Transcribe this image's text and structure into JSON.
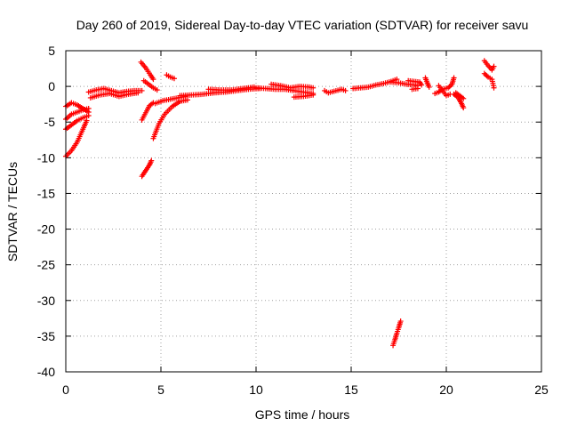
{
  "chart_data": {
    "type": "scatter",
    "title": "Day 260 of 2019, Sidereal Day-to-day VTEC variation (SDTVAR) for receiver savu",
    "xlabel": "GPS time / hours",
    "ylabel": "SDTVAR / TECUs",
    "xlim": [
      0,
      25
    ],
    "ylim": [
      -40,
      5
    ],
    "x_ticks": [
      0,
      5,
      10,
      15,
      20,
      25
    ],
    "y_ticks": [
      5,
      0,
      -5,
      -10,
      -15,
      -20,
      -25,
      -30,
      -35,
      -40
    ],
    "grid": true,
    "marker": "+",
    "marker_color": "#ff0000",
    "series": [
      {
        "name": "SDTVAR",
        "segments": [
          [
            [
              0.0,
              -2.8
            ],
            [
              0.3,
              -2.3
            ],
            [
              0.6,
              -2.6
            ],
            [
              0.9,
              -3.1
            ],
            [
              1.2,
              -3.6
            ]
          ],
          [
            [
              0.0,
              -4.6
            ],
            [
              0.3,
              -3.9
            ],
            [
              0.6,
              -3.6
            ],
            [
              0.9,
              -3.3
            ],
            [
              1.2,
              -3.1
            ]
          ],
          [
            [
              0.0,
              -6.0
            ],
            [
              0.3,
              -5.4
            ],
            [
              0.6,
              -4.8
            ],
            [
              0.9,
              -4.4
            ],
            [
              1.2,
              -4.1
            ]
          ],
          [
            [
              0.0,
              -9.8
            ],
            [
              0.3,
              -9.0
            ],
            [
              0.6,
              -7.8
            ],
            [
              0.9,
              -6.0
            ],
            [
              1.1,
              -4.8
            ]
          ],
          [
            [
              1.2,
              -0.8
            ],
            [
              1.6,
              -0.5
            ],
            [
              2.0,
              -0.3
            ],
            [
              2.4,
              -0.6
            ],
            [
              2.8,
              -0.9
            ],
            [
              3.2,
              -0.7
            ],
            [
              3.6,
              -0.6
            ],
            [
              4.0,
              -0.6
            ]
          ],
          [
            [
              1.3,
              -1.6
            ],
            [
              1.8,
              -1.2
            ],
            [
              2.3,
              -1.0
            ],
            [
              2.8,
              -1.4
            ],
            [
              3.3,
              -1.1
            ],
            [
              3.8,
              -0.9
            ]
          ],
          [
            [
              3.95,
              3.4
            ],
            [
              4.2,
              2.6
            ],
            [
              4.45,
              1.6
            ],
            [
              4.6,
              1.0
            ]
          ],
          [
            [
              4.1,
              0.8
            ],
            [
              4.35,
              0.3
            ],
            [
              4.6,
              -0.2
            ],
            [
              4.8,
              -0.5
            ]
          ],
          [
            [
              4.0,
              -4.7
            ],
            [
              4.2,
              -3.7
            ],
            [
              4.4,
              -2.7
            ],
            [
              4.6,
              -2.3
            ]
          ],
          [
            [
              4.0,
              -12.6
            ],
            [
              4.2,
              -11.8
            ],
            [
              4.4,
              -11.0
            ],
            [
              4.5,
              -10.4
            ]
          ],
          [
            [
              4.6,
              -7.3
            ],
            [
              4.9,
              -5.2
            ],
            [
              5.2,
              -3.9
            ],
            [
              5.6,
              -2.8
            ],
            [
              6.0,
              -2.1
            ],
            [
              6.4,
              -1.9
            ]
          ],
          [
            [
              4.7,
              -2.4
            ],
            [
              5.1,
              -2.0
            ],
            [
              5.5,
              -1.8
            ],
            [
              5.9,
              -1.6
            ],
            [
              6.3,
              -1.4
            ]
          ],
          [
            [
              5.3,
              1.6
            ],
            [
              5.5,
              1.3
            ],
            [
              5.7,
              1.1
            ]
          ],
          [
            [
              6.0,
              -1.3
            ],
            [
              6.6,
              -1.2
            ],
            [
              7.2,
              -1.1
            ],
            [
              7.8,
              -0.9
            ],
            [
              8.4,
              -0.8
            ],
            [
              9.0,
              -0.6
            ],
            [
              9.6,
              -0.4
            ],
            [
              10.2,
              -0.3
            ]
          ],
          [
            [
              7.5,
              -0.4
            ],
            [
              8.1,
              -0.5
            ],
            [
              8.7,
              -0.5
            ],
            [
              9.3,
              -0.3
            ],
            [
              9.9,
              -0.1
            ]
          ],
          [
            [
              10.0,
              -0.2
            ],
            [
              10.5,
              -0.3
            ],
            [
              11.0,
              -0.4
            ],
            [
              11.5,
              -0.4
            ],
            [
              12.0,
              -0.6
            ],
            [
              12.5,
              -0.8
            ],
            [
              13.0,
              -1.0
            ]
          ],
          [
            [
              10.8,
              0.3
            ],
            [
              11.3,
              0.1
            ],
            [
              11.8,
              -0.2
            ],
            [
              12.3,
              0.0
            ],
            [
              12.8,
              -0.1
            ],
            [
              13.0,
              -0.2
            ]
          ],
          [
            [
              12.0,
              -1.5
            ],
            [
              12.5,
              -1.4
            ],
            [
              13.0,
              -1.2
            ]
          ],
          [
            [
              13.6,
              -0.6
            ],
            [
              13.8,
              -0.9
            ],
            [
              14.5,
              -0.4
            ],
            [
              14.7,
              -0.6
            ]
          ],
          [
            [
              15.1,
              -0.3
            ],
            [
              15.5,
              -0.2
            ],
            [
              15.9,
              -0.1
            ],
            [
              16.3,
              0.2
            ],
            [
              16.7,
              0.4
            ],
            [
              17.1,
              0.7
            ],
            [
              17.4,
              1.0
            ]
          ],
          [
            [
              17.1,
              0.6
            ],
            [
              17.5,
              0.5
            ],
            [
              17.9,
              0.3
            ],
            [
              18.3,
              0.2
            ],
            [
              18.5,
              0.1
            ]
          ],
          [
            [
              17.2,
              -36.3
            ],
            [
              17.3,
              -35.5
            ],
            [
              17.4,
              -34.6
            ],
            [
              17.5,
              -33.8
            ],
            [
              17.6,
              -32.9
            ]
          ],
          [
            [
              18.0,
              0.8
            ],
            [
              18.3,
              0.7
            ],
            [
              18.6,
              0.6
            ],
            [
              18.7,
              0.2
            ]
          ],
          [
            [
              18.2,
              -0.4
            ],
            [
              18.5,
              -0.3
            ]
          ],
          [
            [
              18.9,
              1.2
            ],
            [
              19.0,
              0.5
            ],
            [
              19.1,
              -0.1
            ]
          ],
          [
            [
              19.4,
              -1.0
            ],
            [
              19.6,
              -0.8
            ],
            [
              19.8,
              -0.4
            ],
            [
              20.1,
              -0.2
            ],
            [
              20.3,
              0.3
            ],
            [
              20.4,
              1.2
            ]
          ],
          [
            [
              19.6,
              0.1
            ],
            [
              19.8,
              -0.6
            ],
            [
              20.0,
              -1.3
            ],
            [
              20.2,
              -1.1
            ]
          ],
          [
            [
              20.4,
              -1.1
            ],
            [
              20.6,
              -1.5
            ],
            [
              20.8,
              -2.4
            ],
            [
              20.9,
              -3.0
            ]
          ],
          [
            [
              20.5,
              -0.9
            ],
            [
              20.7,
              -1.3
            ],
            [
              20.9,
              -1.7
            ]
          ],
          [
            [
              22.0,
              3.6
            ],
            [
              22.2,
              2.9
            ],
            [
              22.4,
              2.3
            ],
            [
              22.5,
              2.8
            ]
          ],
          [
            [
              22.0,
              1.8
            ],
            [
              22.2,
              1.3
            ],
            [
              22.4,
              1.0
            ],
            [
              22.5,
              -0.2
            ]
          ]
        ]
      }
    ]
  }
}
